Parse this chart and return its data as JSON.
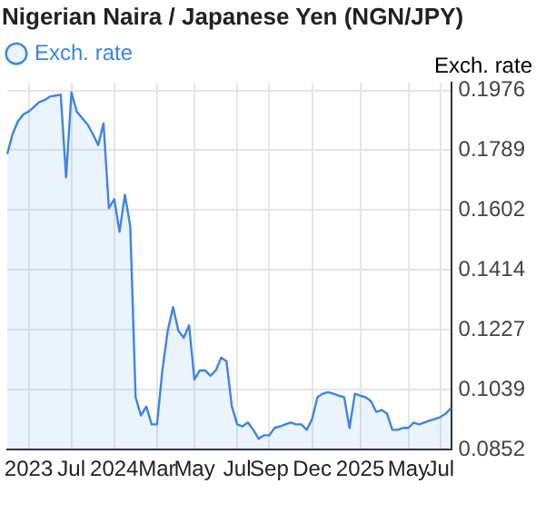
{
  "chart_data": {
    "type": "area",
    "title": "Nigerian Naira / Japanese Yen (NGN/JPY)",
    "ylabel": "Exch. rate",
    "categories": [
      null,
      null,
      null,
      null,
      "2023",
      null,
      null,
      null,
      null,
      null,
      null,
      null,
      "Jul",
      null,
      null,
      null,
      null,
      null,
      null,
      null,
      "2024",
      null,
      null,
      null,
      null,
      null,
      null,
      null,
      "Mar",
      null,
      null,
      null,
      null,
      null,
      null,
      "May",
      null,
      null,
      null,
      null,
      null,
      null,
      null,
      "Jul",
      null,
      null,
      null,
      null,
      null,
      "Sep",
      null,
      null,
      null,
      null,
      null,
      null,
      null,
      "Dec",
      null,
      null,
      null,
      null,
      null,
      null,
      null,
      null,
      "2025",
      null,
      null,
      null,
      null,
      null,
      null,
      null,
      null,
      "May",
      null,
      null,
      null,
      null,
      null,
      "Jul",
      null,
      null
    ],
    "series": [
      {
        "name": "Exch. rate",
        "color": "#3d85e0",
        "values": [
          0.1777,
          0.184,
          0.188,
          0.1901,
          0.191,
          0.1925,
          0.194,
          0.1946,
          0.1957,
          0.196,
          0.1963,
          0.1704,
          0.197,
          0.191,
          0.189,
          0.187,
          0.184,
          0.1805,
          0.1873,
          0.1608,
          0.1636,
          0.1534,
          0.165,
          0.1551,
          0.1016,
          0.0959,
          0.0987,
          0.0931,
          0.0931,
          0.11,
          0.1224,
          0.1298,
          0.1224,
          0.1202,
          0.1241,
          0.1072,
          0.11,
          0.11,
          0.1083,
          0.11,
          0.114,
          0.1128,
          0.0987,
          0.0931,
          0.0925,
          0.0937,
          0.0914,
          0.0886,
          0.0897,
          0.0897,
          0.092,
          0.0925,
          0.0931,
          0.0937,
          0.0931,
          0.0931,
          0.0914,
          0.0948,
          0.1016,
          0.1027,
          0.1032,
          0.1027,
          0.1021,
          0.1016,
          0.092,
          0.1027,
          0.1021,
          0.1016,
          0.1004,
          0.097,
          0.0976,
          0.0965,
          0.0914,
          0.0914,
          0.092,
          0.092,
          0.0937,
          0.0931,
          0.0937,
          0.0943,
          0.0948,
          0.0954,
          0.0965,
          0.0982
        ]
      }
    ],
    "ylim": [
      0.0852,
      0.2
    ],
    "yticks": [
      0.0852,
      0.1039,
      0.1227,
      0.1414,
      0.1602,
      0.1789,
      0.1976
    ],
    "grid": true,
    "legend": "top left"
  }
}
